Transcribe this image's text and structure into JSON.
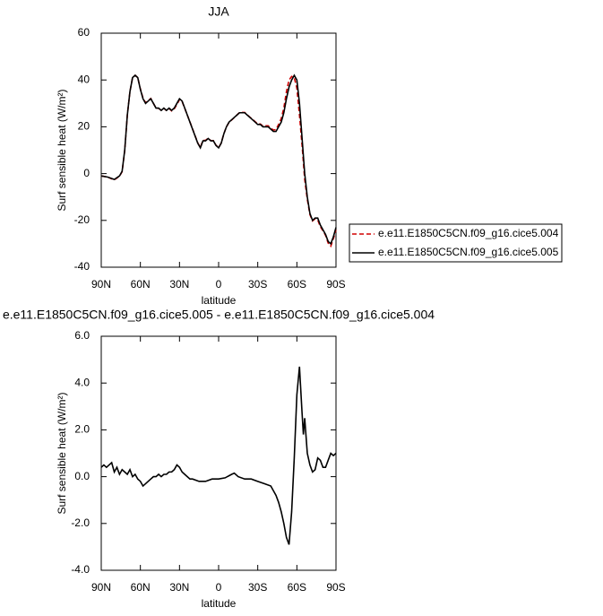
{
  "chart_data": [
    {
      "type": "line",
      "title": "JJA",
      "xlabel": "latitude",
      "ylabel": "Surf sensible heat (W/m²)",
      "xlim": [
        90,
        -90
      ],
      "xticks": [
        {
          "value": 90,
          "label": "90N"
        },
        {
          "value": 60,
          "label": "60N"
        },
        {
          "value": 30,
          "label": "30N"
        },
        0,
        {
          "value": -30,
          "label": "30S"
        },
        {
          "value": -60,
          "label": "60S"
        },
        {
          "value": -90,
          "label": "90S"
        }
      ],
      "ylim": [
        -40,
        60
      ],
      "yticks": [
        -40,
        -20,
        0,
        20,
        40,
        60
      ],
      "legend": "outside-right",
      "x": [
        90,
        85,
        80,
        76,
        74,
        72,
        70,
        68,
        66,
        64,
        62,
        60,
        58,
        56,
        54,
        52,
        50,
        48,
        46,
        44,
        42,
        40,
        38,
        36,
        34,
        32,
        30,
        28,
        26,
        24,
        22,
        20,
        18,
        16,
        14,
        12,
        10,
        8,
        6,
        4,
        2,
        0,
        -2,
        -4,
        -6,
        -8,
        -10,
        -12,
        -14,
        -16,
        -18,
        -20,
        -22,
        -24,
        -26,
        -28,
        -30,
        -32,
        -34,
        -36,
        -38,
        -40,
        -42,
        -44,
        -46,
        -48,
        -50,
        -52,
        -54,
        -56,
        -58,
        -60,
        -62,
        -64,
        -66,
        -68,
        -70,
        -72,
        -74,
        -76,
        -78,
        -80,
        -82,
        -84,
        -86,
        -88,
        -90
      ],
      "series": [
        {
          "name": "e.e11.E1850C5CN.f09_g16.cice5.004",
          "color": "#d00000",
          "dash": true,
          "values": [
            -1,
            -1.5,
            -2.7,
            -1.1,
            0.8,
            9.8,
            25,
            35,
            41,
            42,
            41,
            36.2,
            32.3,
            30.3,
            31.2,
            32.1,
            30,
            28,
            27.9,
            27,
            27.9,
            26.9,
            27.8,
            26.8,
            27.7,
            29.5,
            31.6,
            30.8,
            27.9,
            25,
            22.1,
            19.1,
            16.1,
            13.1,
            11.2,
            14.2,
            14.2,
            15.1,
            14.1,
            14.1,
            12.1,
            11.1,
            13.1,
            17,
            20,
            21.9,
            22.9,
            23.9,
            25,
            26.1,
            26.1,
            26.1,
            25.1,
            24.1,
            23.2,
            22.2,
            21.2,
            21.2,
            20.3,
            20.4,
            20.4,
            19.4,
            18.6,
            18.8,
            21,
            23.5,
            28,
            35,
            40,
            41.5,
            41,
            36.5,
            25,
            12,
            -2.5,
            -11,
            -17.5,
            -20.2,
            -19.3,
            -19.8,
            -22.7,
            -24.4,
            -26.4,
            -29.7,
            -31,
            -27.9,
            -24
          ]
        },
        {
          "name": "e.e11.E1850C5CN.f09_g16.cice5.005",
          "color": "#000000",
          "dash": false,
          "values": [
            -1,
            -1.5,
            -2.5,
            -1,
            1,
            10,
            25,
            35,
            41,
            42,
            41,
            36,
            32,
            30,
            31,
            32,
            30,
            28,
            28,
            27,
            28,
            27,
            28,
            27,
            28,
            30,
            32,
            31,
            28,
            25,
            22,
            19,
            16,
            13,
            11,
            14,
            14,
            15,
            14,
            14,
            12,
            11,
            13,
            17,
            20,
            22,
            23,
            24,
            25,
            26,
            26,
            26,
            25,
            24,
            23,
            22,
            21,
            21,
            20,
            20,
            20,
            19,
            18,
            18,
            20,
            22,
            26,
            32,
            37,
            40,
            42,
            40,
            30,
            15,
            0,
            -10,
            -17,
            -20,
            -19,
            -19,
            -22,
            -24,
            -26,
            -29,
            -30,
            -27,
            -23
          ]
        }
      ]
    },
    {
      "type": "line",
      "title": "e.e11.E1850C5CN.f09_g16.cice5.005 - e.e11.E1850C5CN.f09_g16.cice5.004",
      "xlabel": "latitude",
      "ylabel": "Surf sensible heat (W/m²)",
      "xlim": [
        90,
        -90
      ],
      "xticks": [
        {
          "value": 90,
          "label": "90N"
        },
        {
          "value": 60,
          "label": "60N"
        },
        {
          "value": 30,
          "label": "30N"
        },
        0,
        {
          "value": -30,
          "label": "30S"
        },
        {
          "value": -60,
          "label": "60S"
        },
        {
          "value": -90,
          "label": "90S"
        }
      ],
      "ylim": [
        -4,
        6
      ],
      "yticks": [
        {
          "value": -4,
          "label": "-4.0"
        },
        {
          "value": -2,
          "label": "-2.0"
        },
        {
          "value": 0,
          "label": "0.0"
        },
        {
          "value": 2,
          "label": "2.0"
        },
        {
          "value": 4,
          "label": "4.0"
        },
        {
          "value": 6,
          "label": "6.0"
        }
      ],
      "x": [
        90,
        88,
        86,
        84,
        82,
        80,
        78,
        76,
        74,
        72,
        70,
        68,
        66,
        64,
        62,
        60,
        58,
        56,
        54,
        52,
        50,
        48,
        46,
        44,
        42,
        40,
        38,
        36,
        34,
        32,
        30,
        28,
        26,
        24,
        22,
        20,
        15,
        10,
        5,
        0,
        -5,
        -10,
        -12,
        -15,
        -20,
        -25,
        -30,
        -35,
        -40,
        -42,
        -44,
        -46,
        -48,
        -50,
        -52,
        -54,
        -56,
        -58,
        -60,
        -62,
        -64,
        -65,
        -66,
        -68,
        -70,
        -72,
        -74,
        -76,
        -78,
        -80,
        -82,
        -84,
        -86,
        -88,
        -90
      ],
      "series": [
        {
          "color": "#000000",
          "dash": false,
          "values": [
            0.4,
            0.5,
            0.4,
            0.5,
            0.6,
            0.2,
            0.4,
            0.1,
            0.3,
            0.2,
            0.1,
            0.3,
            0.0,
            0.1,
            -0.1,
            -0.2,
            -0.4,
            -0.3,
            -0.2,
            -0.1,
            0.0,
            0.0,
            0.1,
            0.0,
            0.1,
            0.1,
            0.2,
            0.2,
            0.3,
            0.5,
            0.4,
            0.2,
            0.1,
            0.0,
            -0.1,
            -0.1,
            -0.2,
            -0.2,
            -0.1,
            -0.1,
            -0.05,
            0.1,
            0.15,
            0.0,
            -0.1,
            -0.1,
            -0.2,
            -0.3,
            -0.4,
            -0.6,
            -0.8,
            -1.1,
            -1.5,
            -2.0,
            -2.6,
            -2.9,
            -1.5,
            0.8,
            3.5,
            4.7,
            2.7,
            1.8,
            2.5,
            1.0,
            0.5,
            0.2,
            0.3,
            0.8,
            0.7,
            0.4,
            0.4,
            0.7,
            1.0,
            0.9,
            1.0
          ]
        }
      ]
    }
  ]
}
